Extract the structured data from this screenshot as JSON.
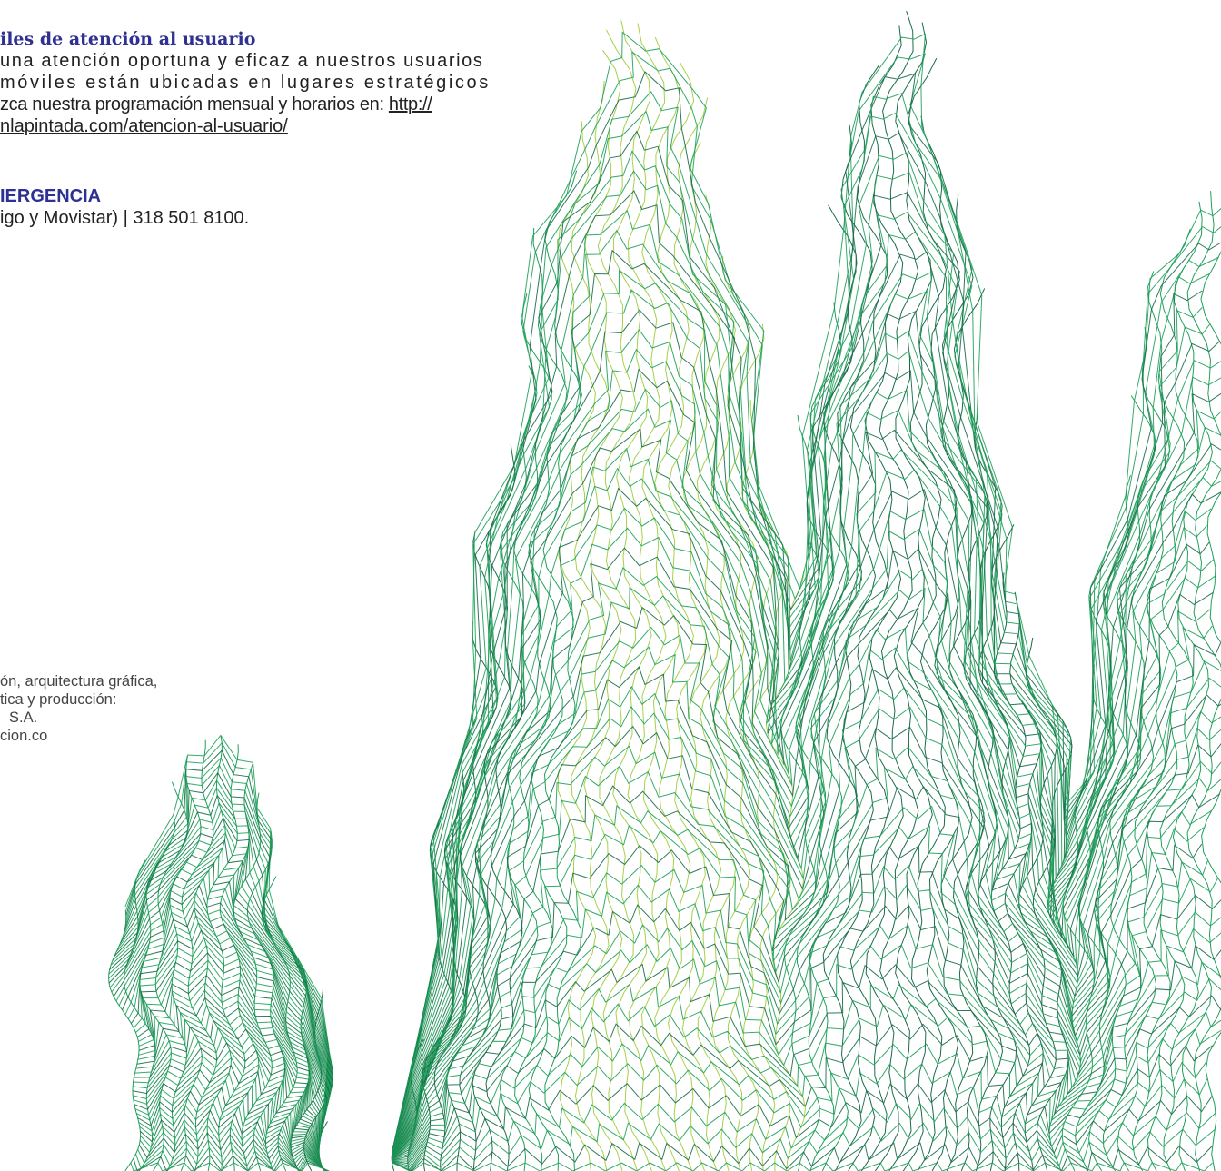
{
  "attention_section": {
    "title": "iles de atención al usuario",
    "line1": "una atención oportuna y eficaz a nuestros usuarios",
    "line2": "móviles están ubicadas en lugares estratégicos",
    "line3_text": "zca nuestra programación mensual y horarios en: ",
    "line3_link": "http://",
    "line4_link": "nlapintada.com/atencion-al-usuario/"
  },
  "emergency_section": {
    "title": "IERGENCIA",
    "line": "igo y Movistar) | 318 501 8100."
  },
  "credits": {
    "line1": "ón, arquitectura gráfica,",
    "line2": "tica y producción:",
    "line3": "S.A.",
    "line4": "cion.co"
  },
  "colors": {
    "heading": "#2e3192",
    "mesh_dark": "#1a6b4a",
    "mesh_mid": "#1fa05a",
    "mesh_light": "#a6d14a"
  }
}
